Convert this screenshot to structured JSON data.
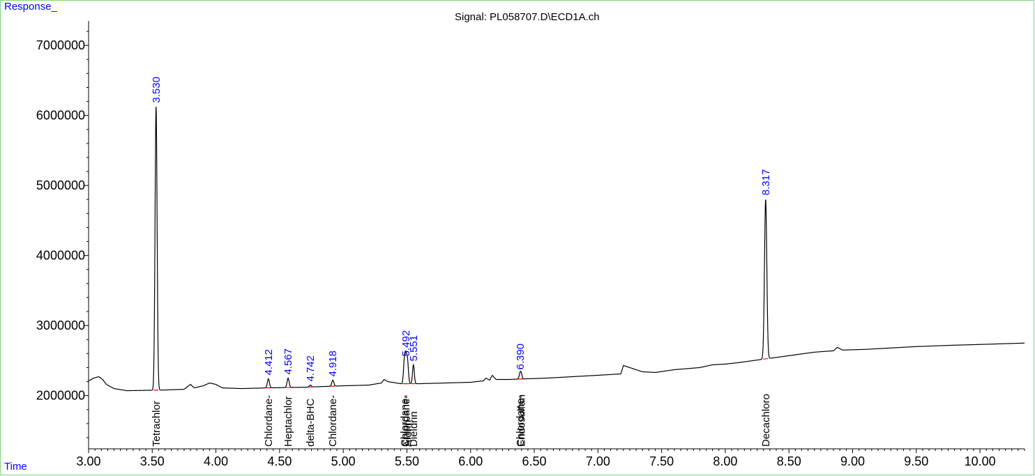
{
  "header": {
    "y_axis_label": "Response_",
    "x_axis_label": "Time",
    "signal_title": "Signal: PL058707.D\\ECD1A.ch"
  },
  "colors": {
    "trace": "#000000",
    "rt_label": "#0000ff",
    "baseline_mark": "#ff0000",
    "frame": "#7cd67c",
    "axis_title": "#0000ff"
  },
  "chart_data": {
    "type": "line",
    "xlim": [
      3.0,
      10.35
    ],
    "ylim": [
      1240000,
      7350000
    ],
    "x_ticks": [
      3.0,
      3.5,
      4.0,
      4.5,
      5.0,
      5.5,
      6.0,
      6.5,
      7.0,
      7.5,
      8.0,
      8.5,
      9.0,
      9.5,
      10.0
    ],
    "x_tick_labels": [
      "3.00",
      "3.50",
      "4.00",
      "4.50",
      "5.00",
      "5.50",
      "6.00",
      "6.50",
      "7.00",
      "7.50",
      "8.00",
      "8.50",
      "9.00",
      "9.50",
      "10.00"
    ],
    "y_ticks": [
      2000000,
      3000000,
      4000000,
      5000000,
      6000000,
      7000000
    ],
    "y_tick_labels": [
      "2000000",
      "3000000",
      "4000000",
      "5000000",
      "6000000",
      "7000000"
    ],
    "grid": false,
    "baseline": [
      [
        3.0,
        2210000
      ],
      [
        3.04,
        2250000
      ],
      [
        3.08,
        2270000
      ],
      [
        3.11,
        2230000
      ],
      [
        3.14,
        2160000
      ],
      [
        3.16,
        2140000
      ],
      [
        3.2,
        2100000
      ],
      [
        3.3,
        2070000
      ],
      [
        3.45,
        2075000
      ],
      [
        3.6,
        2080000
      ],
      [
        3.75,
        2090000
      ],
      [
        3.8,
        2160000
      ],
      [
        3.83,
        2110000
      ],
      [
        3.9,
        2140000
      ],
      [
        3.95,
        2180000
      ],
      [
        4.0,
        2160000
      ],
      [
        4.05,
        2110000
      ],
      [
        4.2,
        2100000
      ],
      [
        4.4,
        2110000
      ],
      [
        4.7,
        2120000
      ],
      [
        5.0,
        2140000
      ],
      [
        5.2,
        2150000
      ],
      [
        5.3,
        2180000
      ],
      [
        5.32,
        2230000
      ],
      [
        5.35,
        2200000
      ],
      [
        5.45,
        2170000
      ],
      [
        5.6,
        2170000
      ],
      [
        5.8,
        2180000
      ],
      [
        6.0,
        2190000
      ],
      [
        6.1,
        2210000
      ],
      [
        6.12,
        2250000
      ],
      [
        6.15,
        2220000
      ],
      [
        6.17,
        2290000
      ],
      [
        6.2,
        2230000
      ],
      [
        6.3,
        2230000
      ],
      [
        6.45,
        2240000
      ],
      [
        6.6,
        2250000
      ],
      [
        6.8,
        2270000
      ],
      [
        7.0,
        2290000
      ],
      [
        7.18,
        2310000
      ],
      [
        7.2,
        2430000
      ],
      [
        7.25,
        2400000
      ],
      [
        7.35,
        2340000
      ],
      [
        7.45,
        2330000
      ],
      [
        7.6,
        2370000
      ],
      [
        7.8,
        2400000
      ],
      [
        7.9,
        2440000
      ],
      [
        8.0,
        2450000
      ],
      [
        8.1,
        2470000
      ],
      [
        8.3,
        2520000
      ],
      [
        8.5,
        2570000
      ],
      [
        8.7,
        2620000
      ],
      [
        8.85,
        2640000
      ],
      [
        8.88,
        2690000
      ],
      [
        8.92,
        2650000
      ],
      [
        9.1,
        2660000
      ],
      [
        9.3,
        2680000
      ],
      [
        9.5,
        2700000
      ],
      [
        9.8,
        2720000
      ],
      [
        10.0,
        2730000
      ],
      [
        10.35,
        2750000
      ]
    ],
    "peaks": [
      {
        "rt": 3.53,
        "rt_label": "3.530",
        "height": 6130000,
        "width": 0.008,
        "compound": "Tetrachlor"
      },
      {
        "rt": 4.412,
        "rt_label": "4.412",
        "height": 2240000,
        "width": 0.008,
        "compound": "Chlordane-"
      },
      {
        "rt": 4.567,
        "rt_label": "4.567",
        "height": 2250000,
        "width": 0.008,
        "compound": "Heptachlor"
      },
      {
        "rt": 4.742,
        "rt_label": "4.742",
        "height": 2150000,
        "width": 0.008,
        "compound": "delta-BHC"
      },
      {
        "rt": 4.918,
        "rt_label": "4.918",
        "height": 2220000,
        "width": 0.008,
        "compound": "Chlordane-"
      },
      {
        "rt": 5.48,
        "rt_label": "",
        "height": 2480000,
        "width": 0.007,
        "compound": "Chlordane-"
      },
      {
        "rt": 5.492,
        "rt_label": "5.492",
        "height": 2510000,
        "width": 0.007,
        "compound": "Chlordane-"
      },
      {
        "rt": 5.505,
        "rt_label": "",
        "height": 2470000,
        "width": 0.007,
        "compound": "Aldrin"
      },
      {
        "rt": 5.551,
        "rt_label": "5.551",
        "height": 2440000,
        "width": 0.007,
        "compound": "Dieldrin"
      },
      {
        "rt": 6.39,
        "rt_label": "6.390",
        "height": 2320000,
        "width": 0.008,
        "compound": "Chlordane-"
      },
      {
        "rt": 6.398,
        "rt_label": "",
        "height": 2280000,
        "width": 0.007,
        "compound": "Endosulfan"
      },
      {
        "rt": 8.317,
        "rt_label": "8.317",
        "height": 4810000,
        "width": 0.009,
        "compound": "Decachloro"
      }
    ]
  }
}
